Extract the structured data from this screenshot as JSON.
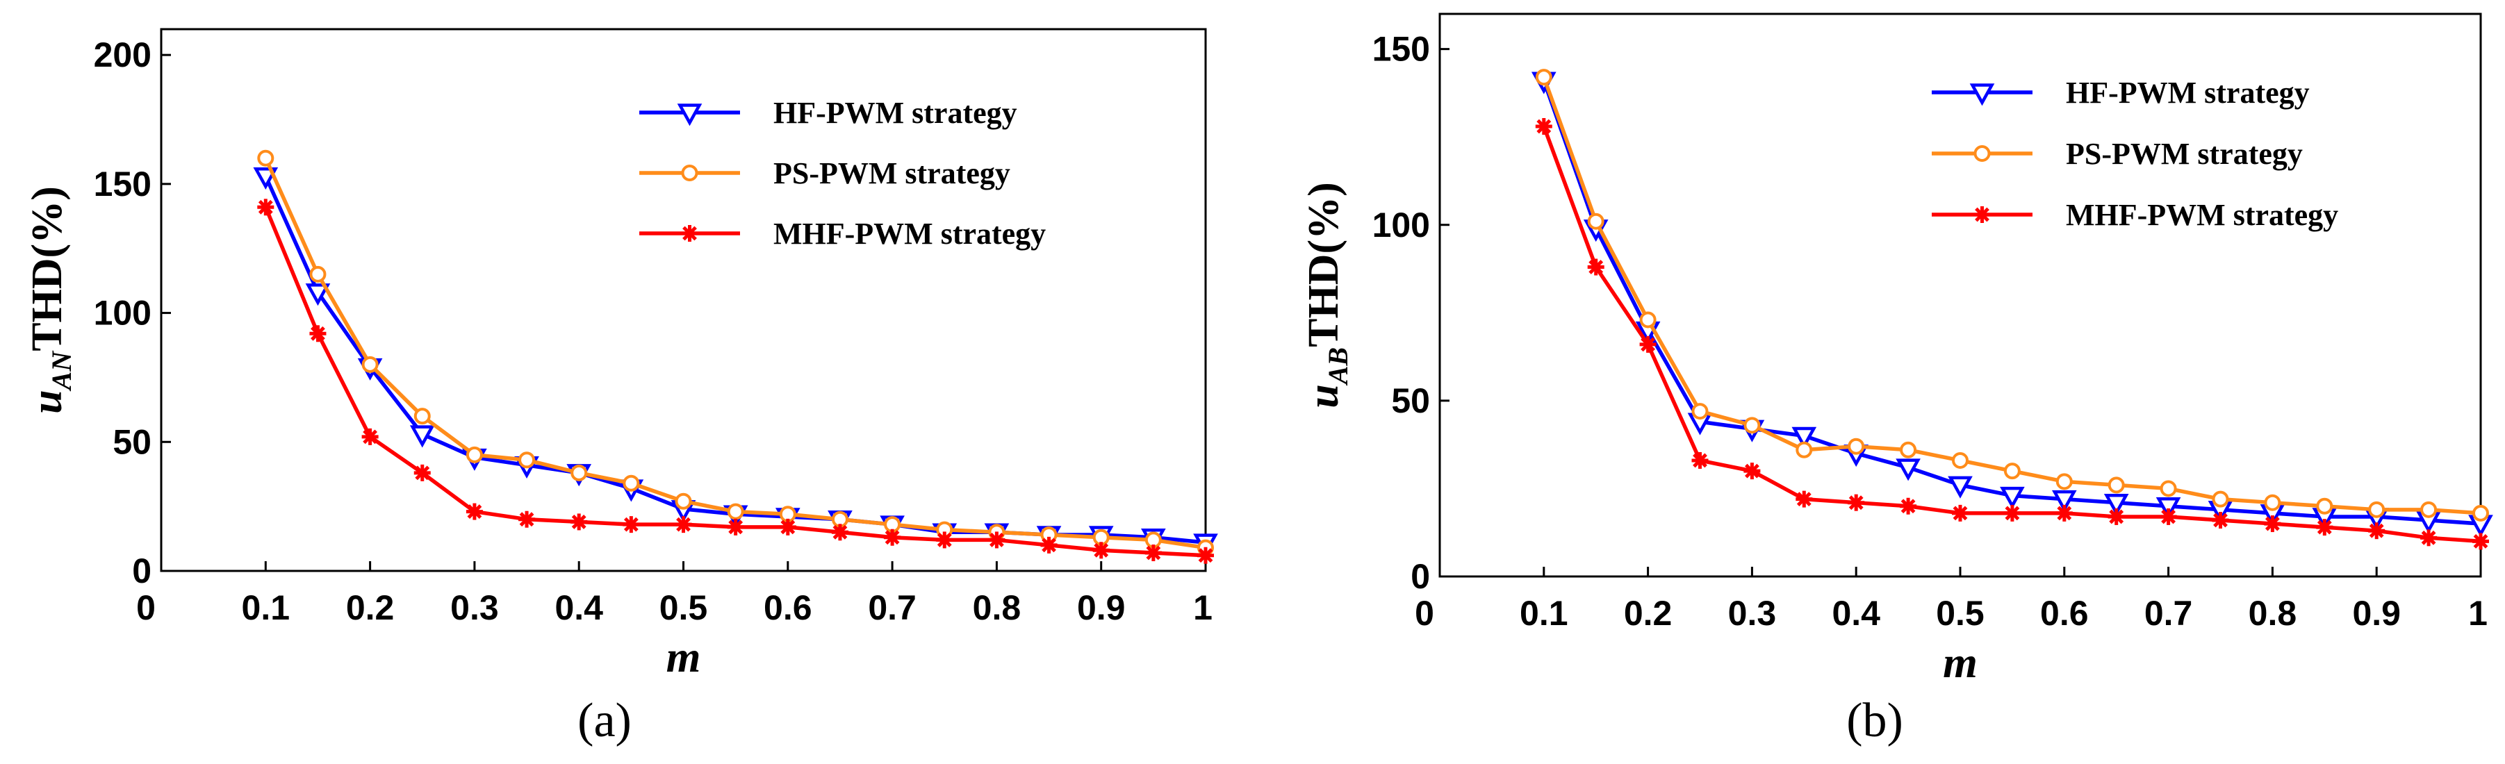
{
  "chart_data": [
    {
      "type": "line",
      "caption": "(a)",
      "ylabel": {
        "prefix": "u",
        "subscript": "AN",
        "suffix": "THD(%)"
      },
      "xlabel": "m",
      "x_ticks": [
        "0",
        "0.1",
        "0.2",
        "0.3",
        "0.4",
        "0.5",
        "0.6",
        "0.7",
        "0.8",
        "0.9",
        "1"
      ],
      "y_ticks": [
        "0",
        "50",
        "100",
        "150",
        "200"
      ],
      "xlim": [
        0,
        1
      ],
      "ylim": [
        0,
        210
      ],
      "x": [
        0.1,
        0.15,
        0.2,
        0.25,
        0.3,
        0.35,
        0.4,
        0.45,
        0.5,
        0.55,
        0.6,
        0.65,
        0.7,
        0.75,
        0.8,
        0.85,
        0.9,
        0.95,
        1.0
      ],
      "series": [
        {
          "name": "HF-PWM strategy",
          "color": "#0000ff",
          "marker": "triangle-down",
          "values": [
            153,
            108,
            79,
            53,
            44,
            41,
            38,
            32,
            24,
            22,
            21,
            20,
            18,
            15,
            15,
            14,
            14,
            13,
            11
          ]
        },
        {
          "name": "PS-PWM strategy",
          "color": "#ff8c1a",
          "marker": "circle",
          "values": [
            160,
            115,
            80,
            60,
            45,
            43,
            38,
            34,
            27,
            23,
            22,
            20,
            18,
            16,
            15,
            14,
            13,
            12,
            9
          ]
        },
        {
          "name": "MHF-PWM strategy",
          "color": "#ff0000",
          "marker": "asterisk",
          "values": [
            141,
            92,
            52,
            38,
            23,
            20,
            19,
            18,
            18,
            17,
            17,
            15,
            13,
            12,
            12,
            10,
            8,
            7,
            6
          ]
        }
      ]
    },
    {
      "type": "line",
      "caption": "(b)",
      "ylabel": {
        "prefix": "u",
        "subscript": "AB",
        "suffix": "THD(%)"
      },
      "xlabel": "m",
      "x_ticks": [
        "0",
        "0.1",
        "0.2",
        "0.3",
        "0.4",
        "0.5",
        "0.6",
        "0.7",
        "0.8",
        "0.9",
        "1"
      ],
      "y_ticks": [
        "0",
        "50",
        "100",
        "150"
      ],
      "xlim": [
        0,
        1
      ],
      "ylim": [
        0,
        160
      ],
      "x": [
        0.1,
        0.15,
        0.2,
        0.25,
        0.3,
        0.35,
        0.4,
        0.45,
        0.5,
        0.55,
        0.6,
        0.65,
        0.7,
        0.75,
        0.8,
        0.85,
        0.9,
        0.95,
        1.0
      ],
      "series": [
        {
          "name": "HF-PWM strategy",
          "color": "#0000ff",
          "marker": "triangle-down",
          "values": [
            141,
            99,
            70,
            44,
            42,
            40,
            35,
            31,
            26,
            23,
            22,
            21,
            20,
            19,
            18,
            17,
            17,
            16,
            15
          ]
        },
        {
          "name": "PS-PWM strategy",
          "color": "#ff8c1a",
          "marker": "circle",
          "values": [
            142,
            101,
            73,
            47,
            43,
            36,
            37,
            36,
            33,
            30,
            27,
            26,
            25,
            22,
            21,
            20,
            19,
            19,
            18
          ]
        },
        {
          "name": "MHF-PWM strategy",
          "color": "#ff0000",
          "marker": "asterisk",
          "values": [
            128,
            88,
            66,
            33,
            30,
            22,
            21,
            20,
            18,
            18,
            18,
            17,
            17,
            16,
            15,
            14,
            13,
            11,
            10
          ]
        }
      ]
    }
  ]
}
